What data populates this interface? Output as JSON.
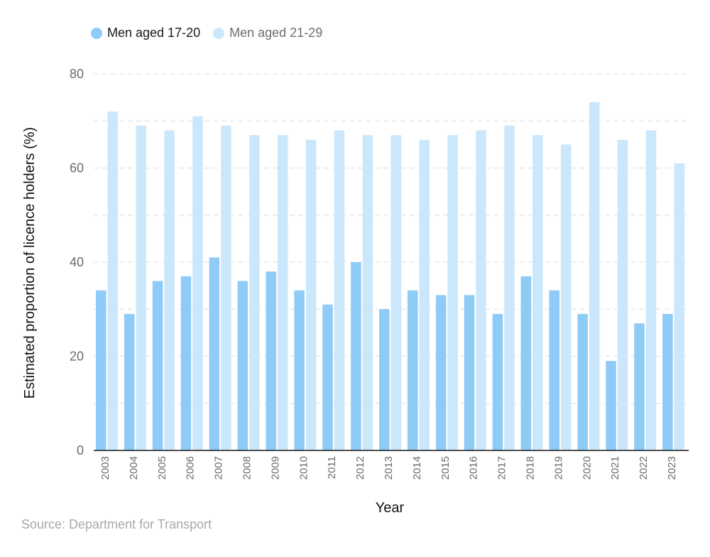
{
  "chart_data": {
    "type": "bar",
    "categories": [
      "2003",
      "2004",
      "2005",
      "2006",
      "2007",
      "2008",
      "2009",
      "2010",
      "2011",
      "2012",
      "2013",
      "2014",
      "2015",
      "2016",
      "2017",
      "2018",
      "2019",
      "2020",
      "2021",
      "2022",
      "2023"
    ],
    "series": [
      {
        "name": "Men aged 17-20",
        "color": "#8ecbf6",
        "values": [
          34,
          29,
          36,
          37,
          41,
          36,
          38,
          34,
          31,
          40,
          30,
          34,
          33,
          33,
          29,
          37,
          34,
          29,
          19,
          27,
          29
        ]
      },
      {
        "name": "Men aged 21-29",
        "color": "#cbe7fb",
        "values": [
          72,
          69,
          68,
          71,
          69,
          67,
          67,
          66,
          68,
          67,
          67,
          66,
          67,
          68,
          69,
          67,
          65,
          74,
          66,
          68,
          61
        ]
      }
    ],
    "xlabel": "Year",
    "ylabel": "Estimated proportion of licence holders (%)",
    "yticks": [
      0,
      20,
      40,
      60,
      80
    ],
    "ylim": [
      0,
      80
    ],
    "grid": true,
    "legend_position": "top-left"
  },
  "source": "Source: Department for Transport"
}
